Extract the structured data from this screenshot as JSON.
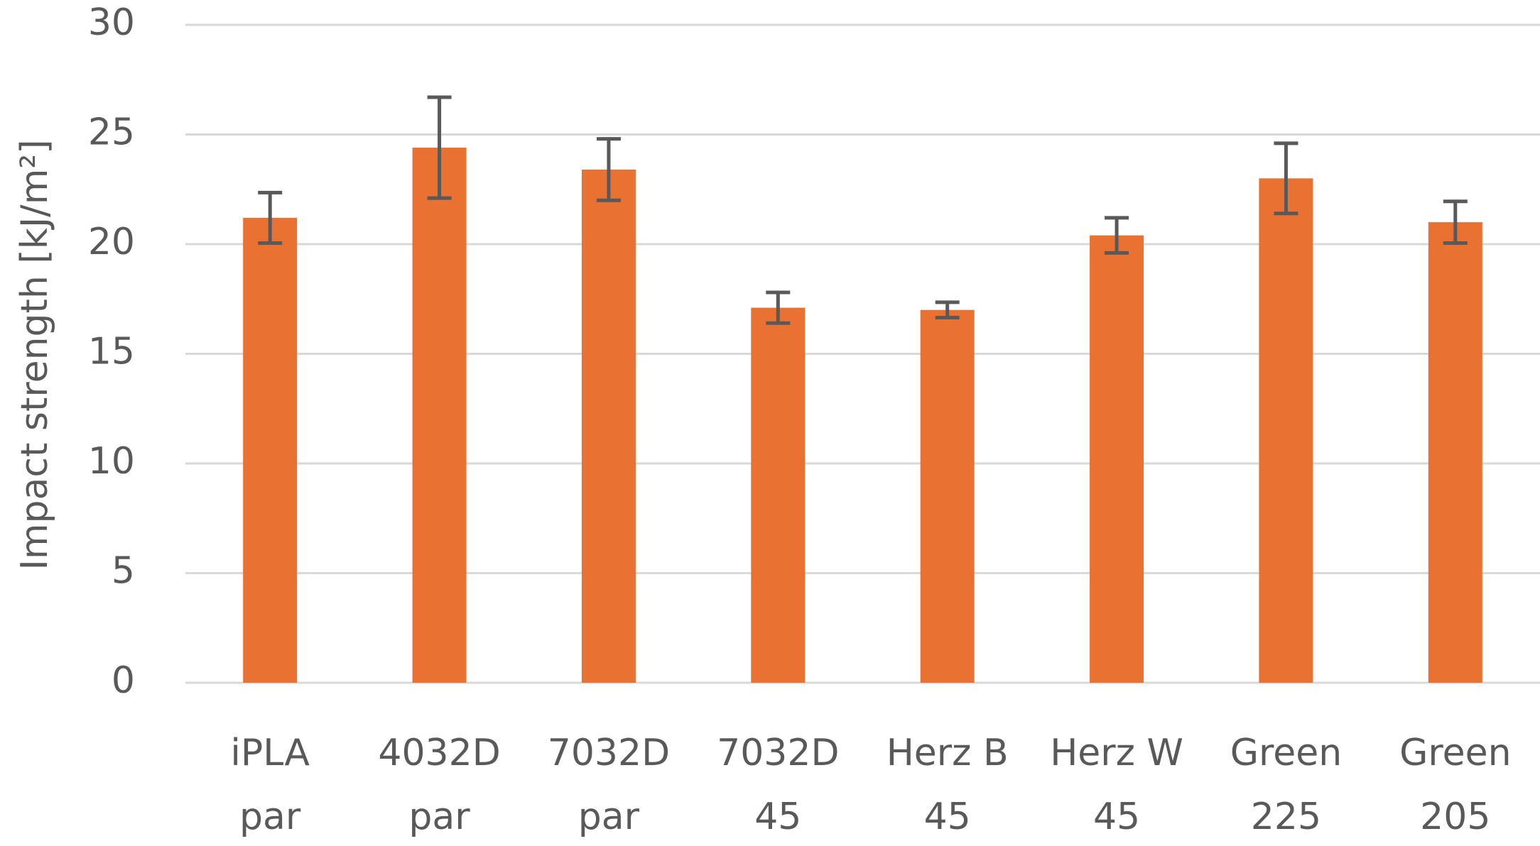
{
  "chart_data": {
    "type": "bar",
    "y_label": "Impact strength [kJ/m²]",
    "categories": [
      [
        "iPLA",
        "par"
      ],
      [
        "4032D",
        "par"
      ],
      [
        "7032D",
        "par"
      ],
      [
        "7032D",
        "45"
      ],
      [
        "Herz B",
        "45"
      ],
      [
        "Herz W",
        "45"
      ],
      [
        "Green",
        "225"
      ],
      [
        "Green",
        "205"
      ]
    ],
    "values": [
      21.2,
      24.4,
      23.4,
      17.1,
      17.0,
      20.4,
      23.0,
      21.0
    ],
    "errors": [
      1.15,
      2.3,
      1.4,
      0.7,
      0.35,
      0.8,
      1.6,
      0.95
    ],
    "color": "#e97132",
    "error_color": "#595959",
    "ylim": [
      0,
      30
    ],
    "yticks": [
      0,
      5,
      10,
      15,
      20,
      25,
      30
    ],
    "grid": true
  }
}
